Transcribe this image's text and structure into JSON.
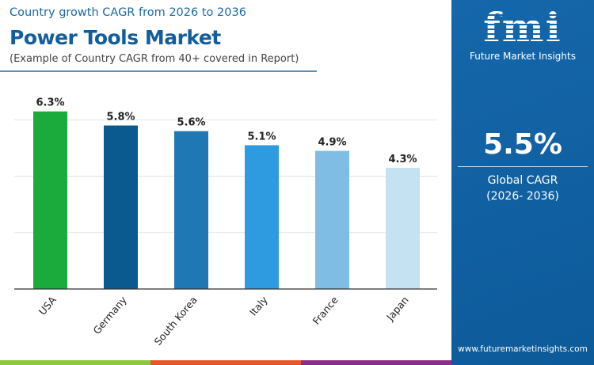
{
  "header": {
    "subtitle": "Country growth CAGR from 2026 to 2036",
    "title": "Power Tools Market",
    "note": "(Example of Country CAGR from 40+ covered in Report)"
  },
  "panel": {
    "logo_text": "fmi",
    "brand": "Future Market Insights",
    "global_cagr": "5.5%",
    "cagr_label": "Global CAGR",
    "cagr_period": "(2026- 2036)",
    "url": "www.futuremarketinsights.com",
    "bg": "#0f5fa1"
  },
  "chart_data": {
    "type": "bar",
    "categories": [
      "USA",
      "Germany",
      "South Korea",
      "Italy",
      "France",
      "Japan"
    ],
    "values": [
      6.3,
      5.8,
      5.6,
      5.1,
      4.9,
      4.3
    ],
    "data_labels": [
      "6.3%",
      "5.8%",
      "5.6%",
      "5.1%",
      "4.9%",
      "4.3%"
    ],
    "colors": [
      "#1aab3c",
      "#0b5a8f",
      "#1f78b4",
      "#2e9be0",
      "#7fbde4",
      "#c5e2f3"
    ],
    "ylim": [
      0,
      6.3
    ],
    "grid": true,
    "yticks_hidden": true,
    "title": "",
    "xlabel": "",
    "ylabel": ""
  },
  "footer_colors": [
    "#8dc63f",
    "#e8572a",
    "#8b2e8c"
  ]
}
